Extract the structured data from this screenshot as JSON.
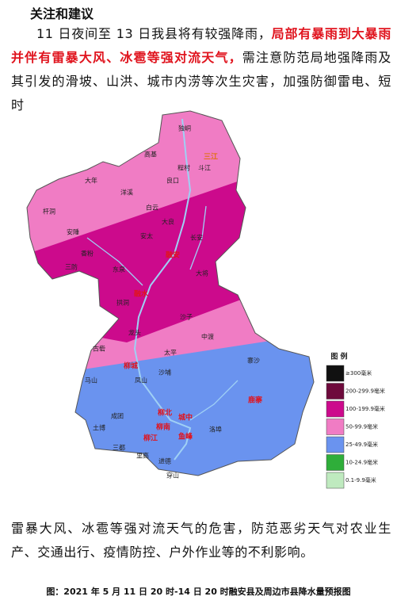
{
  "heading": "关注和建议",
  "paragraph1": {
    "before": "11 日夜间至 13 日我县将有较强降雨，",
    "highlight": "局部有暴雨到大暴雨并伴有雷暴大风、冰雹等强对流天气，",
    "after": "需注意防范局地强降雨及其引发的滑坡、山洪、城市内涝等次生灾害，加强防御雷电、短时"
  },
  "map": {
    "labels": [
      "独峒",
      "高基",
      "斗江",
      "程村",
      "良口",
      "大年",
      "洋溪",
      "杆洞",
      "安陲",
      "香粉",
      "三防",
      "白云",
      "大良",
      "安太",
      "长安",
      "大将",
      "东泉",
      "沙子",
      "拱洞",
      "龙头",
      "古砦",
      "太平",
      "沙埔",
      "马山",
      "凤山",
      "中渡",
      "寨沙",
      "洛埠",
      "土博",
      "三都",
      "里高",
      "进德",
      "穿山",
      "成团"
    ],
    "county_labels": [
      "三江",
      "融安",
      "融水",
      "柳城",
      "鹿寨",
      "柳北",
      "城中",
      "柳南",
      "鱼峰",
      "柳江"
    ],
    "legend": {
      "title": "图 例",
      "items": [
        {
          "label": "≥300毫米",
          "color": "#111111"
        },
        {
          "label": "200-299.9毫米",
          "color": "#6e0a3c"
        },
        {
          "label": "100-199.9毫米",
          "color": "#cc0a8c"
        },
        {
          "label": "50-99.9毫米",
          "color": "#f07cc4"
        },
        {
          "label": "25-49.9毫米",
          "color": "#6a93ef"
        },
        {
          "label": "10-24.9毫米",
          "color": "#2fae3a"
        },
        {
          "label": "0.1-9.9毫米",
          "color": "#bfeabf"
        }
      ]
    }
  },
  "paragraph2": "雷暴大风、冰雹等强对流天气的危害，防范恶劣天气对农业生产、交通出行、疫情防控、户外作业等的不利影响。",
  "caption": "图：2021 年 5 月 11 日 20 时-14 日 20 时融安县及周边市县降水量预报图"
}
